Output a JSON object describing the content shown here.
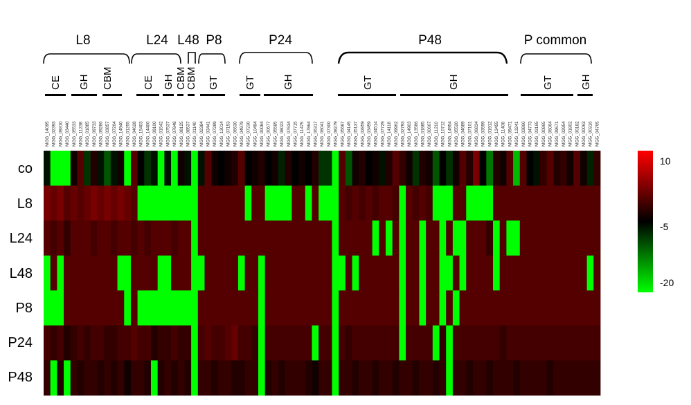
{
  "chart_data": {
    "type": "heatmap",
    "title": "",
    "rows": [
      "co",
      "L8",
      "L24",
      "L48",
      "P8",
      "P24",
      "P48"
    ],
    "groups": [
      "L8",
      "L24",
      "L48",
      "P8",
      "P24",
      "P48",
      "P common"
    ],
    "subgroups": [
      "CE",
      "GH",
      "CBM",
      "CE",
      "GH",
      "CBM",
      "CBM",
      "GT",
      "GT",
      "GH",
      "GT",
      "GH",
      "GT",
      "GH"
    ],
    "genes": [
      "MGG_14095",
      "MGG_02393",
      "MGG_09310",
      "MGG_03440",
      "MGG_05533",
      "MGG_11238",
      "MGG_01885",
      "MGG_09733",
      "MGG_09286",
      "MGG_03857",
      "MGG_07264",
      "MGG_14940",
      "MGG_01255",
      "MGG_04628",
      "MGG_15403",
      "MGG_14400",
      "MGG_09100",
      "MGG_01542",
      "MGG_07537",
      "MGG_07848",
      "MGG_08125",
      "MGG_08537",
      "MGG_01140",
      "MGG_02384",
      "MGG_03441",
      "MGG_07289",
      "MGG_13014",
      "MGG_07153",
      "MGG_06630",
      "MGG_04979",
      "MGG_07230",
      "MGG_10494",
      "MGG_00084",
      "MGG_00677",
      "MGG_05585",
      "MGG_08023",
      "MGG_07634",
      "MGG_07715",
      "MGG_11475",
      "MGG_17864",
      "MGG_06317",
      "MGG_06041",
      "MGG_07300",
      "MGG_08279",
      "MGG_05687",
      "MGG_04145",
      "MGG_05137",
      "MGG_02859",
      "MGG_03459",
      "MGG_04514",
      "MGG_07729",
      "MGG_14118",
      "MGG_09962",
      "MGG_02793",
      "MGG_14903",
      "MGG_13586",
      "MGG_01885",
      "MGG_00667",
      "MGG_11210",
      "MGG_10712",
      "MGG_14954",
      "MGG_05520",
      "MGG_04689",
      "MGG_07101",
      "MGG_06834",
      "MGG_03599",
      "MGG_01912",
      "MGG_13455",
      "MGG_11408",
      "MGG_09471",
      "MGG_13241",
      "MGG_03860",
      "MGG_04773",
      "MGG_03165",
      "MGG_00865",
      "MGG_06064",
      "MGG_09671",
      "MGG_02954",
      "MGG_01802",
      "MGG_00182",
      "MGG_00063",
      "MGG_00316",
      "MGG_04765"
    ],
    "values": [
      [
        -6,
        -20,
        -20,
        -20,
        -4,
        0,
        -8,
        -3,
        -6,
        -10,
        -6,
        -4,
        -20,
        0,
        -5,
        -8,
        -6,
        -20,
        -6,
        -20,
        -4,
        -6,
        -20,
        -6,
        0,
        -4,
        -5,
        -4,
        -3,
        0,
        -5,
        -4,
        -3,
        -5,
        -4,
        -7,
        -3,
        -5,
        -4,
        -5,
        -3,
        -8,
        -8,
        -20,
        0,
        -10,
        -4,
        -3,
        -5,
        -4,
        -6,
        -3,
        0,
        -2,
        -4,
        -8,
        -3,
        -4,
        -10,
        -5,
        -8,
        -4,
        0,
        -3,
        2,
        -5,
        -12,
        -3,
        -4,
        0,
        -16,
        0,
        -5,
        -6,
        -2,
        0,
        -3,
        -2,
        -4,
        0,
        -4,
        -7,
        -2
      ],
      [
        2,
        1,
        2,
        0,
        1,
        0,
        1,
        2,
        1,
        2,
        1,
        2,
        1,
        0,
        -20,
        -20,
        -20,
        -20,
        -20,
        -20,
        -20,
        -20,
        -20,
        0,
        0,
        0,
        0,
        0,
        0,
        0,
        -20,
        0,
        0,
        -20,
        -20,
        -20,
        -20,
        0,
        0,
        -20,
        0,
        -20,
        -20,
        -20,
        0,
        -1,
        0,
        -1,
        0,
        -1,
        0,
        0,
        -1,
        -20,
        0,
        -1,
        0,
        -1,
        -20,
        -20,
        -20,
        0,
        0,
        -20,
        -20,
        -20,
        -20,
        0,
        0,
        0,
        0,
        0,
        0,
        0,
        0,
        0,
        0,
        0,
        0,
        0,
        0,
        0,
        0
      ],
      [
        0,
        -1,
        0,
        -2,
        0,
        0,
        0,
        -1,
        0,
        0,
        -1,
        0,
        0,
        -1,
        0,
        -1,
        0,
        0,
        0,
        -1,
        0,
        0,
        -20,
        0,
        0,
        0,
        0,
        0,
        0,
        0,
        0,
        0,
        0,
        0,
        0,
        0,
        0,
        0,
        0,
        0,
        0,
        0,
        0,
        -20,
        0,
        0,
        0,
        0,
        0,
        -20,
        0,
        -20,
        0,
        -20,
        0,
        0,
        -20,
        0,
        0,
        -20,
        0,
        -20,
        -20,
        0,
        0,
        0,
        -2,
        -20,
        0,
        -20,
        -20,
        0,
        0,
        0,
        0,
        0,
        0,
        0,
        0,
        0,
        0,
        0,
        0
      ],
      [
        -20,
        0,
        -20,
        0,
        0,
        0,
        0,
        0,
        0,
        0,
        0,
        -20,
        -20,
        0,
        0,
        0,
        0,
        -20,
        -20,
        0,
        0,
        0,
        -20,
        -20,
        0,
        0,
        0,
        0,
        0,
        -20,
        0,
        0,
        -20,
        0,
        0,
        0,
        0,
        0,
        0,
        0,
        0,
        0,
        0,
        -20,
        -20,
        0,
        -20,
        0,
        0,
        0,
        0,
        0,
        0,
        -20,
        0,
        0,
        -20,
        0,
        0,
        -20,
        -20,
        0,
        -20,
        0,
        0,
        0,
        0,
        -20,
        0,
        0,
        0,
        0,
        0,
        0,
        0,
        0,
        0,
        0,
        0,
        0,
        0,
        -20,
        0
      ],
      [
        -20,
        -20,
        -20,
        0,
        0,
        0,
        0,
        0,
        0,
        0,
        0,
        0,
        -20,
        0,
        -20,
        -20,
        -20,
        -20,
        -20,
        -20,
        -20,
        -20,
        -20,
        0,
        0,
        0,
        0,
        0,
        0,
        0,
        0,
        0,
        -20,
        0,
        0,
        0,
        0,
        0,
        0,
        0,
        0,
        0,
        0,
        -20,
        0,
        0,
        0,
        0,
        0,
        0,
        0,
        0,
        0,
        -20,
        0,
        0,
        -20,
        0,
        0,
        -20,
        0,
        -20,
        0,
        0,
        0,
        0,
        0,
        0,
        0,
        0,
        0,
        0,
        0,
        0,
        0,
        0,
        0,
        0,
        0,
        0,
        0,
        0,
        0
      ],
      [
        -1,
        -2,
        -1,
        -3,
        -2,
        -1,
        -2,
        -1,
        -1,
        -2,
        -2,
        -1,
        -1,
        0,
        -1,
        -1,
        -3,
        -2,
        -2,
        -1,
        -2,
        -2,
        -20,
        -1,
        0,
        -1,
        -1,
        0,
        1,
        -1,
        -1,
        -2,
        -20,
        -1,
        -1,
        -1,
        -1,
        -1,
        -1,
        -1,
        -20,
        -1,
        -1,
        -20,
        -1,
        -2,
        -1,
        -1,
        -1,
        -1,
        -1,
        -1,
        -1,
        -20,
        -1,
        -1,
        -1,
        -1,
        -20,
        -2,
        -20,
        -1,
        -1,
        -1,
        -1,
        -1,
        -1,
        -1,
        -2,
        -1,
        -1,
        -1,
        -1,
        -1,
        -1,
        -1,
        -1,
        -1,
        -1,
        -1,
        -1,
        -1,
        -1
      ],
      [
        -2,
        -20,
        -3,
        -20,
        -2,
        -3,
        -2,
        -2,
        -3,
        -2,
        -3,
        -2,
        -4,
        -2,
        -2,
        -3,
        -20,
        -3,
        -2,
        -3,
        -2,
        -3,
        -20,
        -2,
        -2,
        -3,
        -2,
        -2,
        -3,
        -3,
        -2,
        -2,
        -20,
        -3,
        -2,
        -3,
        -2,
        -2,
        -2,
        -3,
        -4,
        -2,
        -2,
        -20,
        -2,
        -2,
        -3,
        -2,
        -2,
        -3,
        -2,
        -2,
        -3,
        -2,
        -2,
        -3,
        -2,
        -2,
        -3,
        -2,
        -20,
        -2,
        -2,
        -3,
        -2,
        -2,
        -3,
        -2,
        -2,
        -2,
        -3,
        -2,
        -2,
        -2,
        -2,
        -3,
        -2,
        -2,
        -2,
        -2,
        -2,
        -2,
        -2
      ]
    ],
    "colorbar": {
      "ticks": [
        10,
        -5,
        -20
      ],
      "colors": [
        "#ff0000",
        "#000000",
        "#00ff00"
      ]
    }
  }
}
